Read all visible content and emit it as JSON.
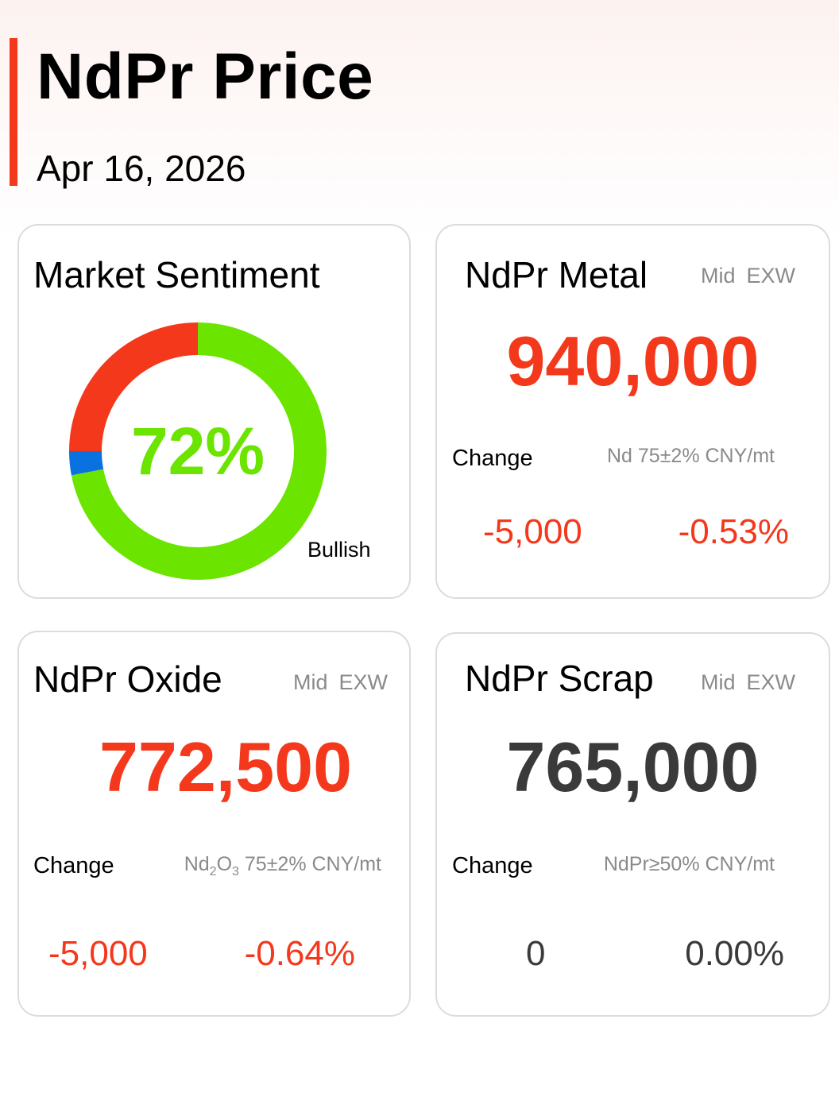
{
  "header": {
    "title": "NdPr Price",
    "date": "Apr 16, 2026"
  },
  "sentiment": {
    "title": "Market Sentiment",
    "percent_text": "72%",
    "label": "Bullish",
    "segments": [
      {
        "name": "bullish",
        "value": 72,
        "color": "#6be400"
      },
      {
        "name": "neutral",
        "value": 3,
        "color": "#0a72e0"
      },
      {
        "name": "bearish",
        "value": 25,
        "color": "#f4381c"
      }
    ]
  },
  "metal": {
    "title": "NdPr Metal",
    "mid": "Mid",
    "exw": "EXW",
    "price": "940,000",
    "change_label": "Change",
    "spec": "Nd 75±2% CNY/mt",
    "change_abs": "-5,000",
    "change_pct": "-0.53%"
  },
  "oxide": {
    "title": "NdPr Oxide",
    "mid": "Mid",
    "exw": "EXW",
    "price": "772,500",
    "change_label": "Change",
    "spec_prefix": "Nd",
    "spec_sub1": "2",
    "spec_mid": "O",
    "spec_sub2": "3",
    "spec_suffix": " 75±2% CNY/mt",
    "change_abs": "-5,000",
    "change_pct": "-0.64%"
  },
  "scrap": {
    "title": "NdPr Scrap",
    "mid": "Mid",
    "exw": "EXW",
    "price": "765,000",
    "change_label": "Change",
    "spec": "NdPr≥50% CNY/mt",
    "change_abs": "0",
    "change_pct": "0.00%"
  },
  "colors": {
    "accent": "#f4381c",
    "bullish": "#6be400",
    "neutral": "#0a72e0",
    "muted_text": "#8a8a8a",
    "dark_value": "#3a3a3a"
  }
}
